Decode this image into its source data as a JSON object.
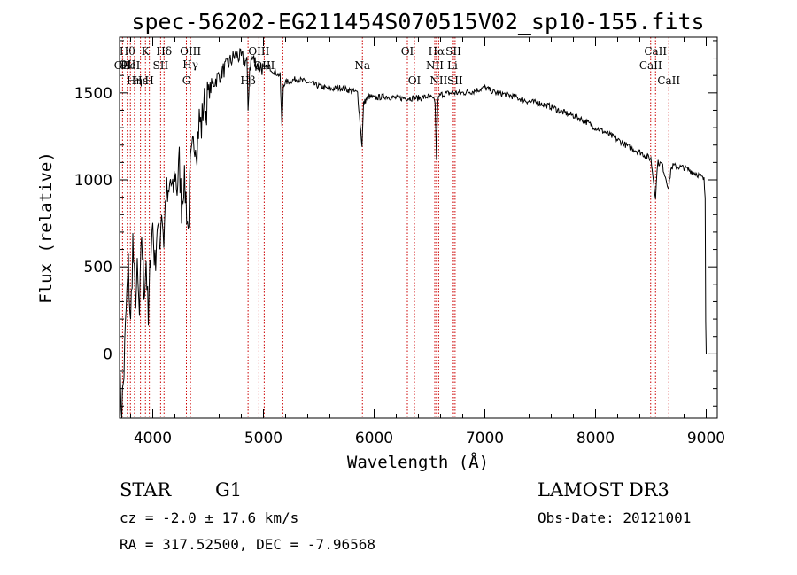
{
  "title": "spec-56202-EG211454S070515V02_sp10-155.fits",
  "info": {
    "class": "STAR",
    "subclass": "G1",
    "survey": "LAMOST DR3",
    "cz": "cz = -2.0 ± 17.6 km/s",
    "obs_date": "Obs-Date: 20121001",
    "radec": "RA = 317.52500, DEC =  -7.96568"
  },
  "chart_data": {
    "type": "line",
    "xlabel": "Wavelength (Å)",
    "ylabel": "Flux (relative)",
    "xlim": [
      3700,
      9100
    ],
    "ylim": [
      -370,
      1820
    ],
    "xticks": [
      4000,
      5000,
      6000,
      7000,
      8000,
      9000
    ],
    "yticks": [
      0,
      500,
      1000,
      1500
    ],
    "grid": false,
    "line_color": "#000000",
    "marker_color": "#cc0000",
    "spectrum_anchors": [
      [
        3700,
        -150
      ],
      [
        3720,
        -330
      ],
      [
        3740,
        -100
      ],
      [
        3760,
        250
      ],
      [
        3780,
        500
      ],
      [
        3800,
        150
      ],
      [
        3820,
        650
      ],
      [
        3840,
        300
      ],
      [
        3860,
        450
      ],
      [
        3880,
        200
      ],
      [
        3900,
        700
      ],
      [
        3920,
        350
      ],
      [
        3940,
        550
      ],
      [
        3960,
        150
      ],
      [
        3980,
        600
      ],
      [
        4000,
        750
      ],
      [
        4020,
        500
      ],
      [
        4040,
        750
      ],
      [
        4060,
        600
      ],
      [
        4080,
        850
      ],
      [
        4100,
        650
      ],
      [
        4120,
        950
      ],
      [
        4140,
        850
      ],
      [
        4160,
        1000
      ],
      [
        4180,
        900
      ],
      [
        4200,
        1050
      ],
      [
        4220,
        950
      ],
      [
        4240,
        1100
      ],
      [
        4260,
        850
      ],
      [
        4280,
        1000
      ],
      [
        4300,
        900
      ],
      [
        4320,
        700
      ],
      [
        4340,
        1050
      ],
      [
        4360,
        1150
      ],
      [
        4380,
        1250
      ],
      [
        4400,
        1200
      ],
      [
        4420,
        1350
      ],
      [
        4440,
        1300
      ],
      [
        4460,
        1450
      ],
      [
        4480,
        1400
      ],
      [
        4500,
        1500
      ],
      [
        4550,
        1560
      ],
      [
        4600,
        1600
      ],
      [
        4650,
        1640
      ],
      [
        4700,
        1680
      ],
      [
        4750,
        1720
      ],
      [
        4800,
        1700
      ],
      [
        4850,
        1680
      ],
      [
        4861,
        1400
      ],
      [
        4875,
        1650
      ],
      [
        4900,
        1700
      ],
      [
        4950,
        1660
      ],
      [
        5000,
        1640
      ],
      [
        5050,
        1650
      ],
      [
        5100,
        1620
      ],
      [
        5150,
        1600
      ],
      [
        5167,
        1300
      ],
      [
        5180,
        1550
      ],
      [
        5200,
        1560
      ],
      [
        5300,
        1580
      ],
      [
        5400,
        1560
      ],
      [
        5500,
        1540
      ],
      [
        5600,
        1520
      ],
      [
        5700,
        1530
      ],
      [
        5800,
        1510
      ],
      [
        5850,
        1500
      ],
      [
        5890,
        1200
      ],
      [
        5905,
        1440
      ],
      [
        5950,
        1480
      ],
      [
        6000,
        1470
      ],
      [
        6100,
        1480
      ],
      [
        6200,
        1470
      ],
      [
        6300,
        1470
      ],
      [
        6400,
        1470
      ],
      [
        6500,
        1480
      ],
      [
        6550,
        1450
      ],
      [
        6563,
        1120
      ],
      [
        6575,
        1460
      ],
      [
        6600,
        1490
      ],
      [
        6700,
        1500
      ],
      [
        6800,
        1500
      ],
      [
        6900,
        1510
      ],
      [
        7000,
        1530
      ],
      [
        7100,
        1500
      ],
      [
        7200,
        1490
      ],
      [
        7300,
        1470
      ],
      [
        7400,
        1450
      ],
      [
        7500,
        1440
      ],
      [
        7600,
        1420
      ],
      [
        7700,
        1390
      ],
      [
        7800,
        1370
      ],
      [
        7900,
        1340
      ],
      [
        8000,
        1300
      ],
      [
        8100,
        1270
      ],
      [
        8200,
        1230
      ],
      [
        8300,
        1190
      ],
      [
        8400,
        1160
      ],
      [
        8500,
        1120
      ],
      [
        8542,
        900
      ],
      [
        8560,
        1100
      ],
      [
        8600,
        1090
      ],
      [
        8662,
        950
      ],
      [
        8680,
        1060
      ],
      [
        8700,
        1080
      ],
      [
        8800,
        1070
      ],
      [
        8900,
        1040
      ],
      [
        8950,
        1020
      ],
      [
        8980,
        1000
      ],
      [
        8990,
        900
      ],
      [
        8995,
        200
      ],
      [
        9000,
        0
      ]
    ],
    "line_markers": [
      {
        "wl": 3727,
        "labels": [
          "OII"
        ],
        "row": 2
      },
      {
        "wl": 3770,
        "labels": [
          "Hθ",
          "OII"
        ],
        "row": 1
      },
      {
        "wl": 3798,
        "labels": [
          "HeI"
        ],
        "row": 2
      },
      {
        "wl": 3835,
        "labels": [
          "Hη"
        ],
        "row": 3
      },
      {
        "wl": 3889,
        "labels": [
          "Hε"
        ],
        "row": 3
      },
      {
        "wl": 3934,
        "labels": [
          "K"
        ],
        "row": 1
      },
      {
        "wl": 3969,
        "labels": [
          "H"
        ],
        "row": 3
      },
      {
        "wl": 4071,
        "labels": [
          "SII"
        ],
        "row": 2
      },
      {
        "wl": 4102,
        "labels": [
          "Hδ"
        ],
        "row": 1
      },
      {
        "wl": 4304,
        "labels": [
          "G"
        ],
        "row": 3
      },
      {
        "wl": 4341,
        "labels": [
          "OIII",
          "Hγ"
        ],
        "row": 1
      },
      {
        "wl": 4861,
        "labels": [
          "Hβ"
        ],
        "row": 3
      },
      {
        "wl": 4959,
        "labels": [
          "OIII"
        ],
        "row": 1
      },
      {
        "wl": 5007,
        "labels": [
          "OIII"
        ],
        "row": 2
      },
      {
        "wl": 5175,
        "labels": [],
        "row": 0
      },
      {
        "wl": 5894,
        "labels": [
          "Na"
        ],
        "row": 2
      },
      {
        "wl": 6300,
        "labels": [
          "OI"
        ],
        "row": 1
      },
      {
        "wl": 6364,
        "labels": [
          "OI"
        ],
        "row": 3
      },
      {
        "wl": 6548,
        "labels": [
          "NII"
        ],
        "row": 2
      },
      {
        "wl": 6563,
        "labels": [
          "Hα"
        ],
        "row": 1
      },
      {
        "wl": 6583,
        "labels": [
          "NII"
        ],
        "row": 3
      },
      {
        "wl": 6707,
        "labels": [
          "Li"
        ],
        "row": 2
      },
      {
        "wl": 6716,
        "labels": [
          "SII"
        ],
        "row": 1
      },
      {
        "wl": 6731,
        "labels": [
          "SII"
        ],
        "row": 3
      },
      {
        "wl": 8498,
        "labels": [
          "CaII"
        ],
        "row": 2
      },
      {
        "wl": 8542,
        "labels": [
          "CaII"
        ],
        "row": 1
      },
      {
        "wl": 8662,
        "labels": [
          "CaII"
        ],
        "row": 3
      }
    ]
  }
}
